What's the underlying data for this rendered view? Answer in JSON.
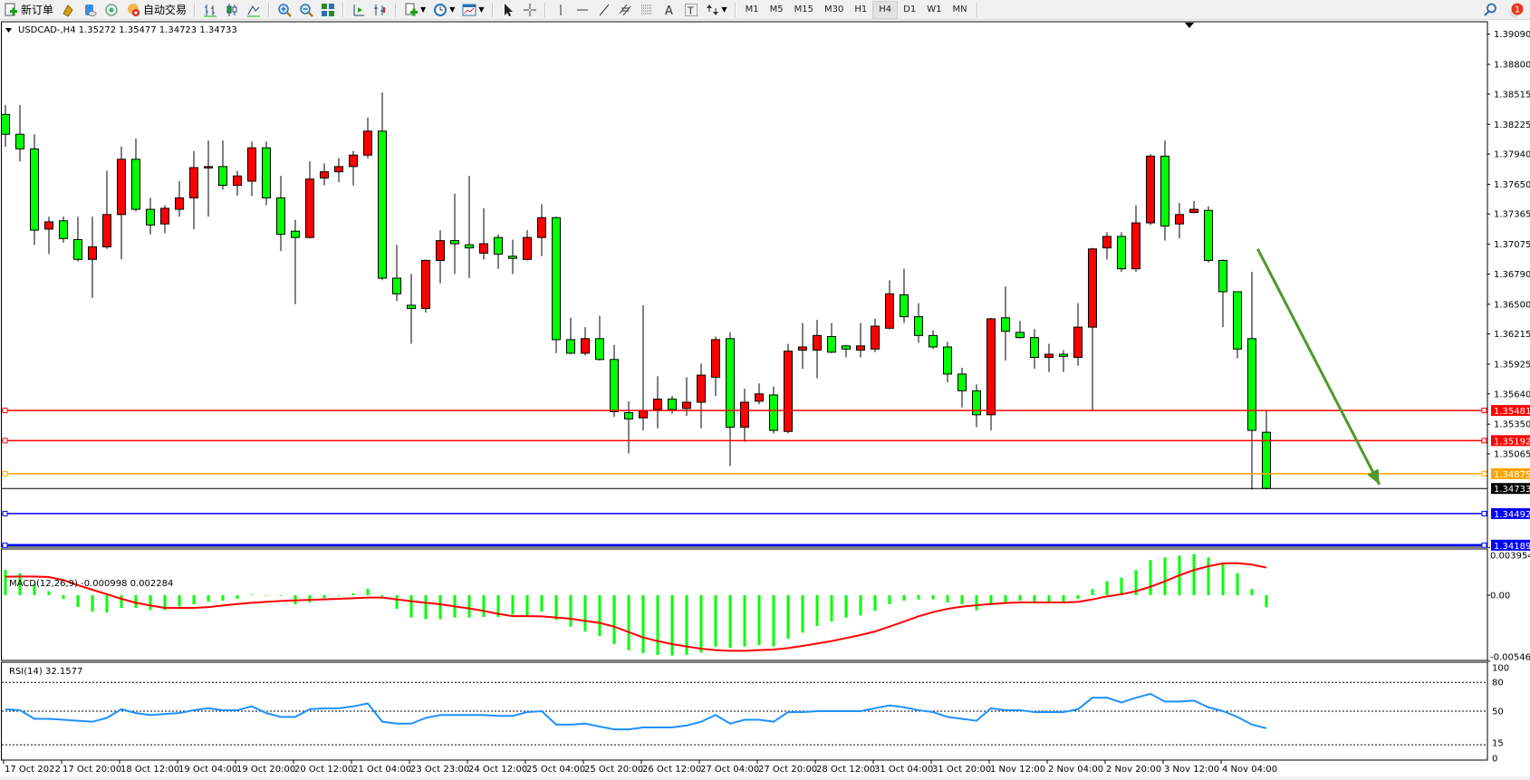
{
  "toolbar": {
    "new_order_label": "新订单",
    "auto_trading_label": "自动交易",
    "timeframes": [
      "M1",
      "M5",
      "M15",
      "M30",
      "H1",
      "H4",
      "D1",
      "W1",
      "MN"
    ],
    "active_timeframe": "H4",
    "notification_count": "1"
  },
  "chart": {
    "header": "USDCAD-,H4  1.35272 1.35477 1.34723 1.34733",
    "symbol": "USDCAD-",
    "timeframe": "H4",
    "colors": {
      "bull_body": "#ff0000",
      "bear_body": "#00ff00",
      "outline": "#000000"
    },
    "price_ticks": [
      "1.39090",
      "1.38800",
      "1.38515",
      "1.38225",
      "1.37940",
      "1.37650",
      "1.37365",
      "1.37075",
      "1.36790",
      "1.36500",
      "1.36215",
      "1.35925",
      "1.35640",
      "1.35350",
      "1.35065"
    ],
    "levels": [
      {
        "price": 1.35481,
        "label": "1.35481",
        "color": "#ff0000"
      },
      {
        "price": 1.35192,
        "label": "1.35192",
        "color": "#ff0000"
      },
      {
        "price": 1.34875,
        "label": "1.34875",
        "color": "#ffa500"
      },
      {
        "price": 1.34492,
        "label": "1.34492",
        "color": "#0000ff"
      },
      {
        "price": 1.34189,
        "label": "1.34189",
        "color": "#0000ff"
      }
    ],
    "bid": {
      "price": 1.34733,
      "label": "1.34733",
      "color": "#000000"
    },
    "trend_arrow": {
      "from": {
        "bar": 86.4,
        "price": 1.3703
      },
      "to": {
        "bar": 94.8,
        "price": 1.3477
      },
      "color": "#4e9a2a"
    },
    "time_labels": [
      "17 Oct 2022",
      "17 Oct 20:00",
      "18 Oct 12:00",
      "19 Oct 04:00",
      "19 Oct 20:00",
      "20 Oct 12:00",
      "21 Oct 04:00",
      "23 Oct 23:00",
      "24 Oct 12:00",
      "25 Oct 04:00",
      "25 Oct 20:00",
      "26 Oct 12:00",
      "27 Oct 04:00",
      "27 Oct 20:00",
      "28 Oct 12:00",
      "31 Oct 04:00",
      "31 Oct 20:00",
      "1 Nov 12:00",
      "2 Nov 04:00",
      "2 Nov 20:00",
      "3 Nov 12:00",
      "4 Nov 04:00"
    ],
    "ohlc": [
      [
        1.3832,
        1.3841,
        1.3801,
        1.3813
      ],
      [
        1.3813,
        1.3841,
        1.3787,
        1.3799
      ],
      [
        1.3799,
        1.3813,
        1.3707,
        1.3721
      ],
      [
        1.3722,
        1.3734,
        1.3698,
        1.3729
      ],
      [
        1.373,
        1.3734,
        1.3709,
        1.3713
      ],
      [
        1.3712,
        1.3734,
        1.3691,
        1.3693
      ],
      [
        1.3693,
        1.3734,
        1.3656,
        1.3705
      ],
      [
        1.3705,
        1.3778,
        1.3703,
        1.3736
      ],
      [
        1.3736,
        1.3801,
        1.3693,
        1.3789
      ],
      [
        1.3789,
        1.3809,
        1.3739,
        1.3741
      ],
      [
        1.3741,
        1.3752,
        1.3717,
        1.3726
      ],
      [
        1.3727,
        1.3745,
        1.3718,
        1.3742
      ],
      [
        1.3741,
        1.3768,
        1.3734,
        1.3752
      ],
      [
        1.3752,
        1.3797,
        1.3722,
        1.3781
      ],
      [
        1.3781,
        1.3807,
        1.3734,
        1.3782
      ],
      [
        1.3782,
        1.3807,
        1.376,
        1.3764
      ],
      [
        1.3764,
        1.3778,
        1.3754,
        1.3773
      ],
      [
        1.3768,
        1.3806,
        1.3754,
        1.38
      ],
      [
        1.38,
        1.3806,
        1.3745,
        1.3752
      ],
      [
        1.3752,
        1.3773,
        1.3701,
        1.3717
      ],
      [
        1.372,
        1.3731,
        1.365,
        1.3714
      ],
      [
        1.3714,
        1.3787,
        1.3713,
        1.377
      ],
      [
        1.3771,
        1.3785,
        1.3764,
        1.3777
      ],
      [
        1.3777,
        1.379,
        1.3767,
        1.3782
      ],
      [
        1.3782,
        1.3797,
        1.3764,
        1.3793
      ],
      [
        1.3793,
        1.3829,
        1.379,
        1.3816
      ],
      [
        1.3816,
        1.3853,
        1.3673,
        1.3675
      ],
      [
        1.3675,
        1.3707,
        1.3653,
        1.366
      ],
      [
        1.3649,
        1.3679,
        1.3612,
        1.3646
      ],
      [
        1.3646,
        1.3693,
        1.3642,
        1.3692
      ],
      [
        1.3692,
        1.3721,
        1.367,
        1.3711
      ],
      [
        1.3711,
        1.3756,
        1.3679,
        1.3708
      ],
      [
        1.3707,
        1.3773,
        1.3675,
        1.3704
      ],
      [
        1.3699,
        1.3742,
        1.3693,
        1.3708
      ],
      [
        1.3714,
        1.3717,
        1.3684,
        1.3698
      ],
      [
        1.3696,
        1.3712,
        1.3679,
        1.3694
      ],
      [
        1.3693,
        1.3721,
        1.3692,
        1.3714
      ],
      [
        1.3714,
        1.3746,
        1.3696,
        1.3733
      ],
      [
        1.3733,
        1.3734,
        1.3603,
        1.3616
      ],
      [
        1.3616,
        1.3637,
        1.3602,
        1.3603
      ],
      [
        1.3603,
        1.3628,
        1.3601,
        1.3617
      ],
      [
        1.3617,
        1.3639,
        1.3596,
        1.3597
      ],
      [
        1.3597,
        1.3611,
        1.3542,
        1.3547
      ],
      [
        1.3546,
        1.3557,
        1.3507,
        1.354
      ],
      [
        1.3541,
        1.3649,
        1.3529,
        1.3548
      ],
      [
        1.3549,
        1.3581,
        1.3531,
        1.3559
      ],
      [
        1.3559,
        1.3562,
        1.3545,
        1.3549
      ],
      [
        1.355,
        1.358,
        1.3543,
        1.3556
      ],
      [
        1.3556,
        1.3593,
        1.3531,
        1.3582
      ],
      [
        1.358,
        1.3619,
        1.3562,
        1.3616
      ],
      [
        1.3617,
        1.3623,
        1.3495,
        1.3532
      ],
      [
        1.3532,
        1.3569,
        1.3518,
        1.3556
      ],
      [
        1.3557,
        1.3574,
        1.3554,
        1.3564
      ],
      [
        1.3563,
        1.3571,
        1.3526,
        1.3529
      ],
      [
        1.3528,
        1.3612,
        1.3526,
        1.3605
      ],
      [
        1.3606,
        1.3632,
        1.3588,
        1.3609
      ],
      [
        1.3606,
        1.3635,
        1.3579,
        1.362
      ],
      [
        1.3619,
        1.3632,
        1.3603,
        1.3604
      ],
      [
        1.361,
        1.3611,
        1.3599,
        1.3607
      ],
      [
        1.3606,
        1.3632,
        1.3599,
        1.361
      ],
      [
        1.3607,
        1.3636,
        1.3604,
        1.3629
      ],
      [
        1.3627,
        1.3673,
        1.3626,
        1.366
      ],
      [
        1.3659,
        1.3684,
        1.3632,
        1.3638
      ],
      [
        1.3638,
        1.3651,
        1.3613,
        1.362
      ],
      [
        1.362,
        1.3625,
        1.3607,
        1.3609
      ],
      [
        1.3609,
        1.3614,
        1.3575,
        1.3583
      ],
      [
        1.3583,
        1.3589,
        1.3551,
        1.3567
      ],
      [
        1.3567,
        1.3573,
        1.3532,
        1.3544
      ],
      [
        1.3544,
        1.3637,
        1.3529,
        1.3636
      ],
      [
        1.3637,
        1.3667,
        1.3596,
        1.3624
      ],
      [
        1.3623,
        1.3634,
        1.3617,
        1.3618
      ],
      [
        1.3618,
        1.3626,
        1.3588,
        1.3599
      ],
      [
        1.3599,
        1.3612,
        1.3585,
        1.3602
      ],
      [
        1.3602,
        1.3606,
        1.3585,
        1.36
      ],
      [
        1.3599,
        1.3651,
        1.3591,
        1.3628
      ],
      [
        1.3628,
        1.3704,
        1.3548,
        1.3703
      ],
      [
        1.3704,
        1.3719,
        1.3693,
        1.3715
      ],
      [
        1.3715,
        1.3719,
        1.3681,
        1.3684
      ],
      [
        1.3684,
        1.3745,
        1.3681,
        1.3728
      ],
      [
        1.3728,
        1.3794,
        1.3726,
        1.3792
      ],
      [
        1.3792,
        1.3807,
        1.3711,
        1.3725
      ],
      [
        1.3727,
        1.3747,
        1.3713,
        1.3736
      ],
      [
        1.3738,
        1.3749,
        1.3737,
        1.3741
      ],
      [
        1.374,
        1.3744,
        1.369,
        1.3692
      ],
      [
        1.3692,
        1.3693,
        1.3628,
        1.3662
      ],
      [
        1.3662,
        1.3662,
        1.3598,
        1.3607
      ],
      [
        1.3617,
        1.3681,
        1.3472,
        1.3529
      ],
      [
        1.35272,
        1.35477,
        1.34723,
        1.34733
      ]
    ]
  },
  "macd": {
    "label": "MACD(12,26,9) -0.000998 0.002284",
    "axis_labels": [
      "0.003954",
      "0.00",
      "-0.005464"
    ],
    "range": [
      -0.005464,
      0.003954
    ],
    "colors": {
      "histogram": "#00ff00",
      "signal": "#ff0000"
    },
    "main": [
      0.00208,
      0.00183,
      0.00095,
      0.00033,
      -0.0003,
      -0.00098,
      -0.00135,
      -0.00143,
      -0.00105,
      -0.00105,
      -0.00123,
      -0.00123,
      -0.00093,
      -0.00075,
      -0.00055,
      -0.00045,
      -0.0003,
      5e-05,
      -5e-05,
      -5e-05,
      -0.00075,
      -0.0006,
      -0.00025,
      -5e-05,
      0.00015,
      0.00053,
      -0.0001,
      -0.00113,
      -0.00185,
      -0.00198,
      -0.00198,
      -0.00185,
      -0.00185,
      -0.0018,
      -0.0018,
      -0.0016,
      -0.00175,
      -0.00135,
      -0.00205,
      -0.0026,
      -0.003,
      -0.00338,
      -0.00405,
      -0.00455,
      -0.0048,
      -0.00495,
      -0.005,
      -0.00493,
      -0.00475,
      -0.00425,
      -0.00435,
      -0.00425,
      -0.00413,
      -0.00423,
      -0.0036,
      -0.0031,
      -0.00255,
      -0.00218,
      -0.00185,
      -0.00168,
      -0.0013,
      -0.00075,
      -0.00045,
      -0.00035,
      -0.00035,
      -0.0006,
      -0.00075,
      -0.00125,
      -0.00068,
      -0.0006,
      -0.00045,
      -0.00055,
      -0.00055,
      -0.00055,
      -0.0003,
      0.0005,
      0.00115,
      0.00145,
      0.00208,
      0.0029,
      0.00313,
      0.00328,
      0.0034,
      0.00313,
      0.00258,
      0.00183,
      0.0005,
      -0.000998
    ],
    "signal": [
      0.00153,
      0.00155,
      0.00155,
      0.0015,
      0.00125,
      0.00083,
      0.00045,
      8e-05,
      -0.0003,
      -0.00063,
      -0.00085,
      -0.00105,
      -0.00105,
      -0.00105,
      -0.00098,
      -0.00085,
      -0.00073,
      -0.00063,
      -0.00055,
      -0.00048,
      -0.00043,
      -0.00038,
      -0.00035,
      -0.0003,
      -0.00025,
      -0.0002,
      -0.0002,
      -0.00035,
      -0.0005,
      -0.00063,
      -0.00075,
      -0.00093,
      -0.0011,
      -0.0013,
      -0.00155,
      -0.00173,
      -0.00173,
      -0.00175,
      -0.00185,
      -0.00195,
      -0.00213,
      -0.0023,
      -0.0026,
      -0.00305,
      -0.0035,
      -0.0038,
      -0.00405,
      -0.00425,
      -0.00443,
      -0.00455,
      -0.0046,
      -0.0046,
      -0.00455,
      -0.0045,
      -0.00438,
      -0.0042,
      -0.004,
      -0.0038,
      -0.00355,
      -0.0033,
      -0.003,
      -0.0026,
      -0.00218,
      -0.00175,
      -0.0014,
      -0.00113,
      -0.00095,
      -0.00083,
      -0.00073,
      -0.00065,
      -0.0006,
      -0.0006,
      -0.0006,
      -0.0006,
      -0.00055,
      -0.00035,
      -0.0001,
      8e-05,
      0.00033,
      0.0007,
      0.00115,
      0.00165,
      0.00208,
      0.0024,
      0.00263,
      0.00265,
      0.00253,
      0.002284
    ]
  },
  "rsi": {
    "label": "RSI(14) 32.1577",
    "axis_labels": [
      "100",
      "80",
      "50",
      "15",
      "0"
    ],
    "levels": [
      80,
      50,
      15
    ],
    "color": "#1e90ff",
    "values": [
      52,
      51,
      42,
      42,
      41,
      40,
      39,
      43,
      52,
      48,
      46,
      47,
      48,
      51,
      53,
      51,
      51,
      55,
      48,
      44,
      44,
      52,
      53,
      53,
      55,
      58,
      39,
      37,
      37,
      43,
      46,
      46,
      46,
      46,
      45,
      45,
      49,
      50,
      36,
      36,
      37,
      34,
      31,
      31,
      33,
      33,
      33,
      35,
      39,
      46,
      37,
      41,
      41,
      39,
      49,
      49,
      50,
      50,
      50,
      50,
      53,
      56,
      54,
      51,
      49,
      44,
      42,
      40,
      53,
      51,
      51,
      49,
      49,
      49,
      52,
      64,
      64,
      59,
      64,
      68,
      60,
      60,
      61,
      54,
      50,
      44,
      36,
      32.16
    ]
  }
}
